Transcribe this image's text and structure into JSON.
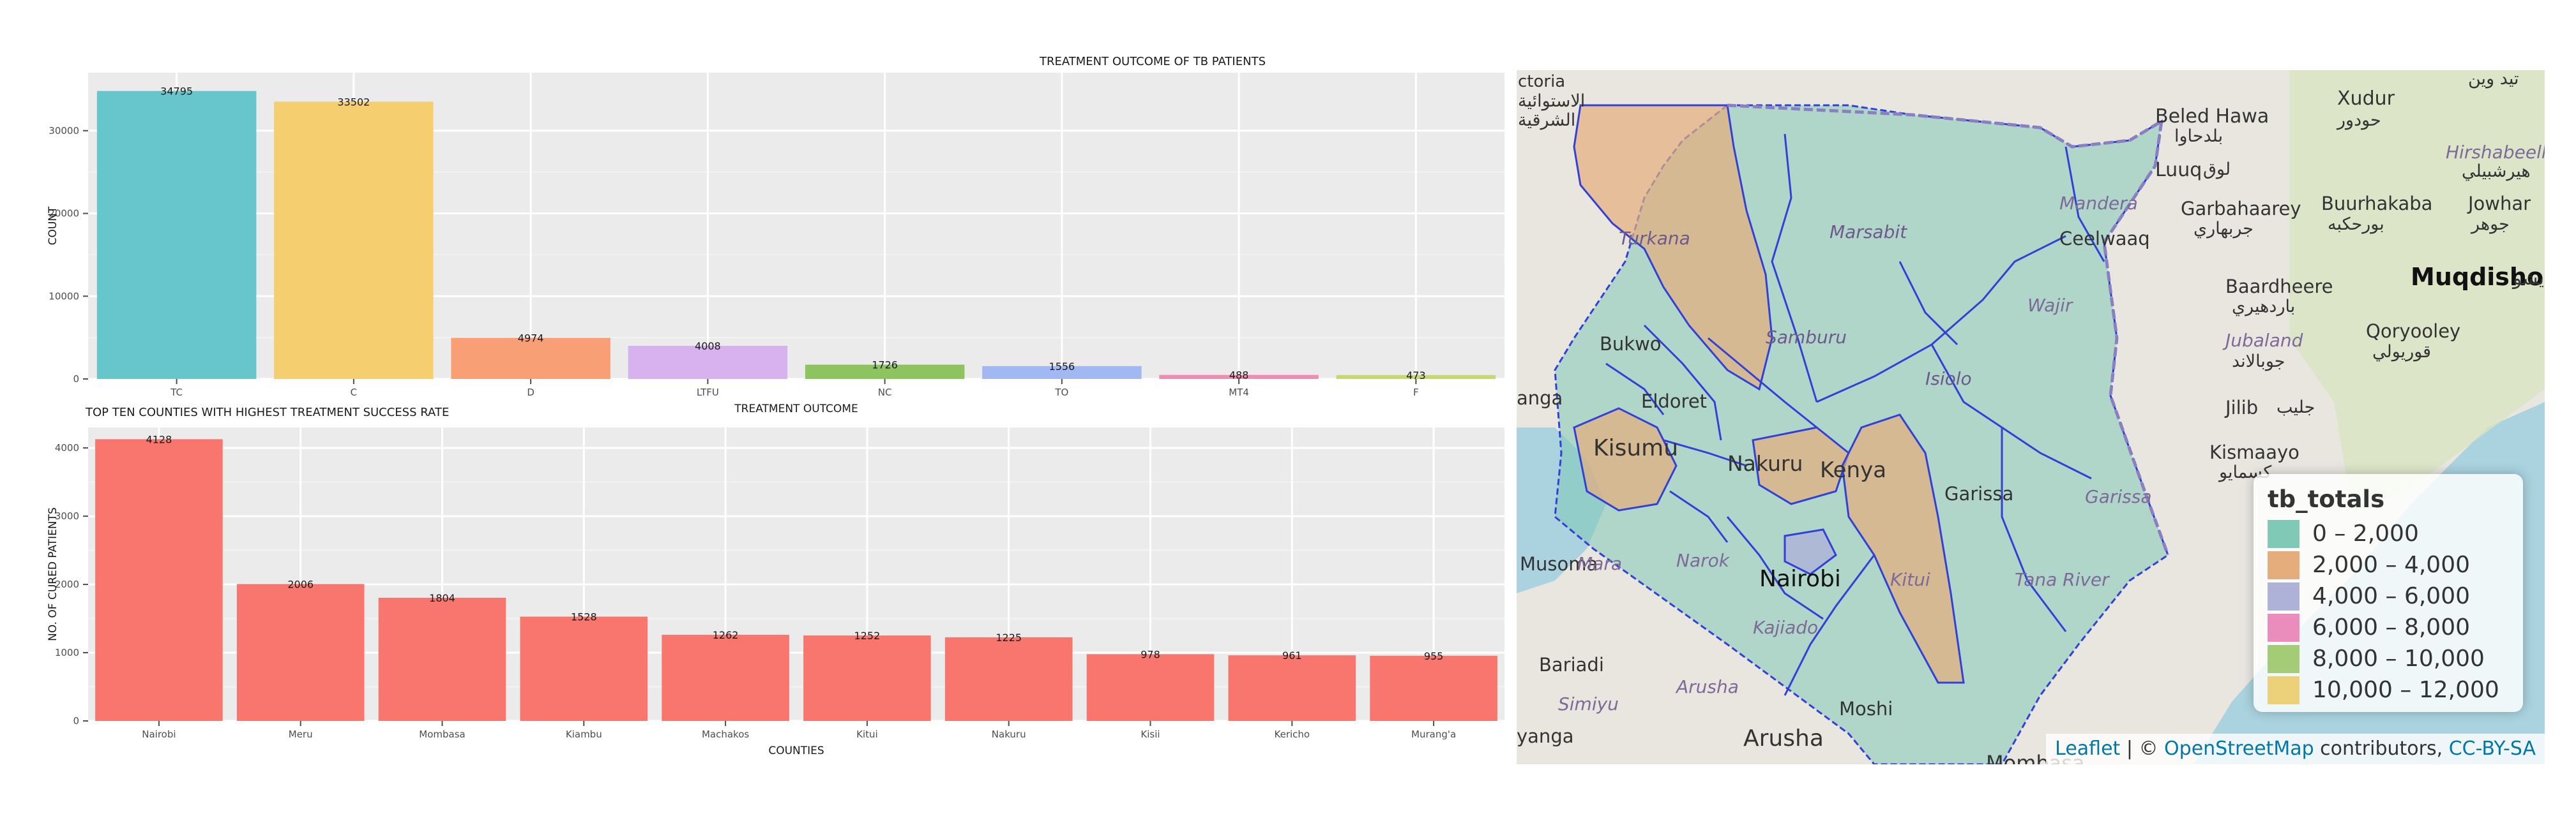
{
  "chart_data": [
    {
      "type": "bar",
      "title": "TREATMENT OUTCOME OF TB PATIENTS",
      "xlabel": "TREATMENT OUTCOME",
      "ylabel": "COUNT",
      "categories": [
        "TC",
        "C",
        "D",
        "LTFU",
        "NC",
        "TO",
        "MT4",
        "F"
      ],
      "values": [
        34795,
        33502,
        4974,
        4008,
        1726,
        1556,
        488,
        473
      ],
      "value_labels": [
        "34795",
        "33502",
        "4974",
        "4008",
        "1726",
        "1556",
        "488",
        "473"
      ],
      "colors": [
        "#67c5cc",
        "#f5cf6f",
        "#f99f76",
        "#d7b2ef",
        "#8dc460",
        "#a2b8f2",
        "#f08cb1",
        "#c8d770"
      ],
      "ylim": [
        0,
        37000
      ],
      "yticks": [
        0,
        10000,
        20000,
        30000
      ],
      "ytick_labels": [
        "0",
        "10000",
        "20000",
        "30000"
      ],
      "grid": true,
      "background": "#ebebeb"
    },
    {
      "type": "bar",
      "title": "TOP TEN COUNTIES WITH HIGHEST TREATMENT SUCCESS RATE",
      "xlabel": "COUNTIES",
      "ylabel": "NO. OF CURED PATIENTS",
      "categories": [
        "Nairobi",
        "Meru",
        "Mombasa",
        "Kiambu",
        "Machakos",
        "Kitui",
        "Nakuru",
        "Kisii",
        "Kericho",
        "Murang'a"
      ],
      "values": [
        4128,
        2006,
        1804,
        1528,
        1262,
        1252,
        1225,
        978,
        961,
        955
      ],
      "value_labels": [
        "4128",
        "2006",
        "1804",
        "1528",
        "1262",
        "1252",
        "1225",
        "978",
        "961",
        "955"
      ],
      "colors": [
        "#f8766d"
      ],
      "ylim": [
        0,
        4300
      ],
      "yticks": [
        0,
        1000,
        2000,
        3000,
        4000
      ],
      "ytick_labels": [
        "0",
        "1000",
        "2000",
        "3000",
        "4000"
      ],
      "grid": true,
      "background": "#ebebeb"
    }
  ],
  "map": {
    "legend": {
      "title": "tb_totals",
      "items": [
        {
          "label": "0 – 2,000",
          "color": "#7fc9b6"
        },
        {
          "label": "2,000 – 4,000",
          "color": "#e5ad7c"
        },
        {
          "label": "4,000 – 6,000",
          "color": "#aeb2d8"
        },
        {
          "label": "6,000 – 8,000",
          "color": "#ea8dbd"
        },
        {
          "label": "8,000 – 10,000",
          "color": "#a4cc76"
        },
        {
          "label": "10,000 – 12,000",
          "color": "#ecd17a"
        }
      ]
    },
    "attribution": {
      "leaflet": "Leaflet",
      "sep": " | © ",
      "osm": "OpenStreetMap",
      "contrib": " contributors, ",
      "license": "CC-BY-SA"
    },
    "place_labels": {
      "ctoria": "ctoria",
      "ar1": "الاستوائية",
      "ar2": "الشرقية",
      "beledhawa": "Beled Hawa",
      "beledhawa_ar": "بلدحاوا",
      "xudur": "Xudur",
      "xudur_ar": "حودور",
      "ar_top": "تيد وين",
      "hirshabelle": "Hirshabeelle",
      "hirshabelle_ar": "هيرشبيلي",
      "luuq": "Luuq",
      "luuq_ar": "لوق",
      "mandera": "Mandera",
      "garbahaarey": "Garbahaarey",
      "garbahaarey_ar": "جربهاري",
      "buurhakaba": "Buurhakaba",
      "buurhakaba_ar": "بورحكبه",
      "jowhar": "Jowhar",
      "jowhar_ar": "جوهر",
      "turkana": "Turkana",
      "marsabit": "Marsabit",
      "ceelwaaq": "Ceelwaaq",
      "baardheere": "Baardheere",
      "baardheere_ar": "باردهيري",
      "muqdisho": "Muqdisho",
      "muqdisho_ar": "مقديشو",
      "wajir": "Wajir",
      "qoryooley": "Qoryooley",
      "qoryooley_ar": "قوريولي",
      "jubaland": "Jubaland",
      "jubaland_ar": "جوبالاند",
      "bukwo": "Bukwo",
      "samburu": "Samburu",
      "isiolo": "Isiolo",
      "anga": "anga",
      "eldoret": "Eldoret",
      "jilib": "Jilib",
      "jilib_ar": "جليب",
      "kismaayo": "Kismaayo",
      "kismaayo_ar": "كسمايو",
      "kisumu": "Kisumu",
      "nakuru": "Nakuru",
      "kenya": "Kenya",
      "garissa_city": "Garissa",
      "garissa_region": "Garissa",
      "musoma": "Musoma",
      "mara": "Mara",
      "narok": "Narok",
      "nairobi": "Nairobi",
      "kitui": "Kitui",
      "tanariver": "Tana River",
      "kajiado": "Kajiado",
      "bariadi": "Bariadi",
      "simiyu": "Simiyu",
      "arusha_region": "Arusha",
      "moshi": "Moshi",
      "arusha_city": "Arusha",
      "yanga": "yanga",
      "mombasa": "Mombasa"
    }
  }
}
